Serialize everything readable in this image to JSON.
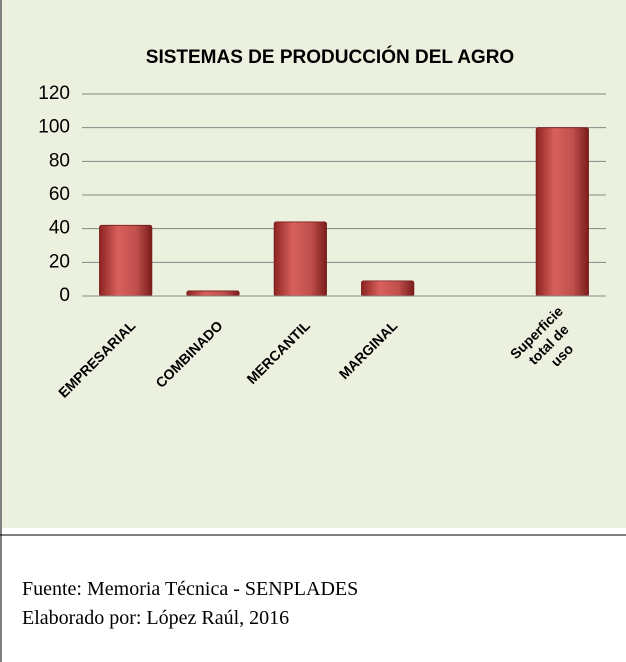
{
  "chart_data": {
    "type": "bar",
    "title": "SISTEMAS DE PRODUCCIÓN DEL AGRO",
    "categories": [
      "EMPRESARIAL",
      "COMBINADO",
      "MERCANTIL",
      "MARGINAL",
      null,
      "Superficie total de uso"
    ],
    "values": [
      42,
      3,
      44,
      9,
      null,
      100
    ],
    "color": "#c0504d",
    "ylim": [
      0,
      120
    ],
    "yticks": [
      0,
      20,
      40,
      60,
      80,
      100,
      120
    ],
    "grid": true
  },
  "footer": {
    "source": "Fuente: Memoria Técnica - SENPLADES",
    "author": "Elaborado por: López Raúl, 2016"
  }
}
